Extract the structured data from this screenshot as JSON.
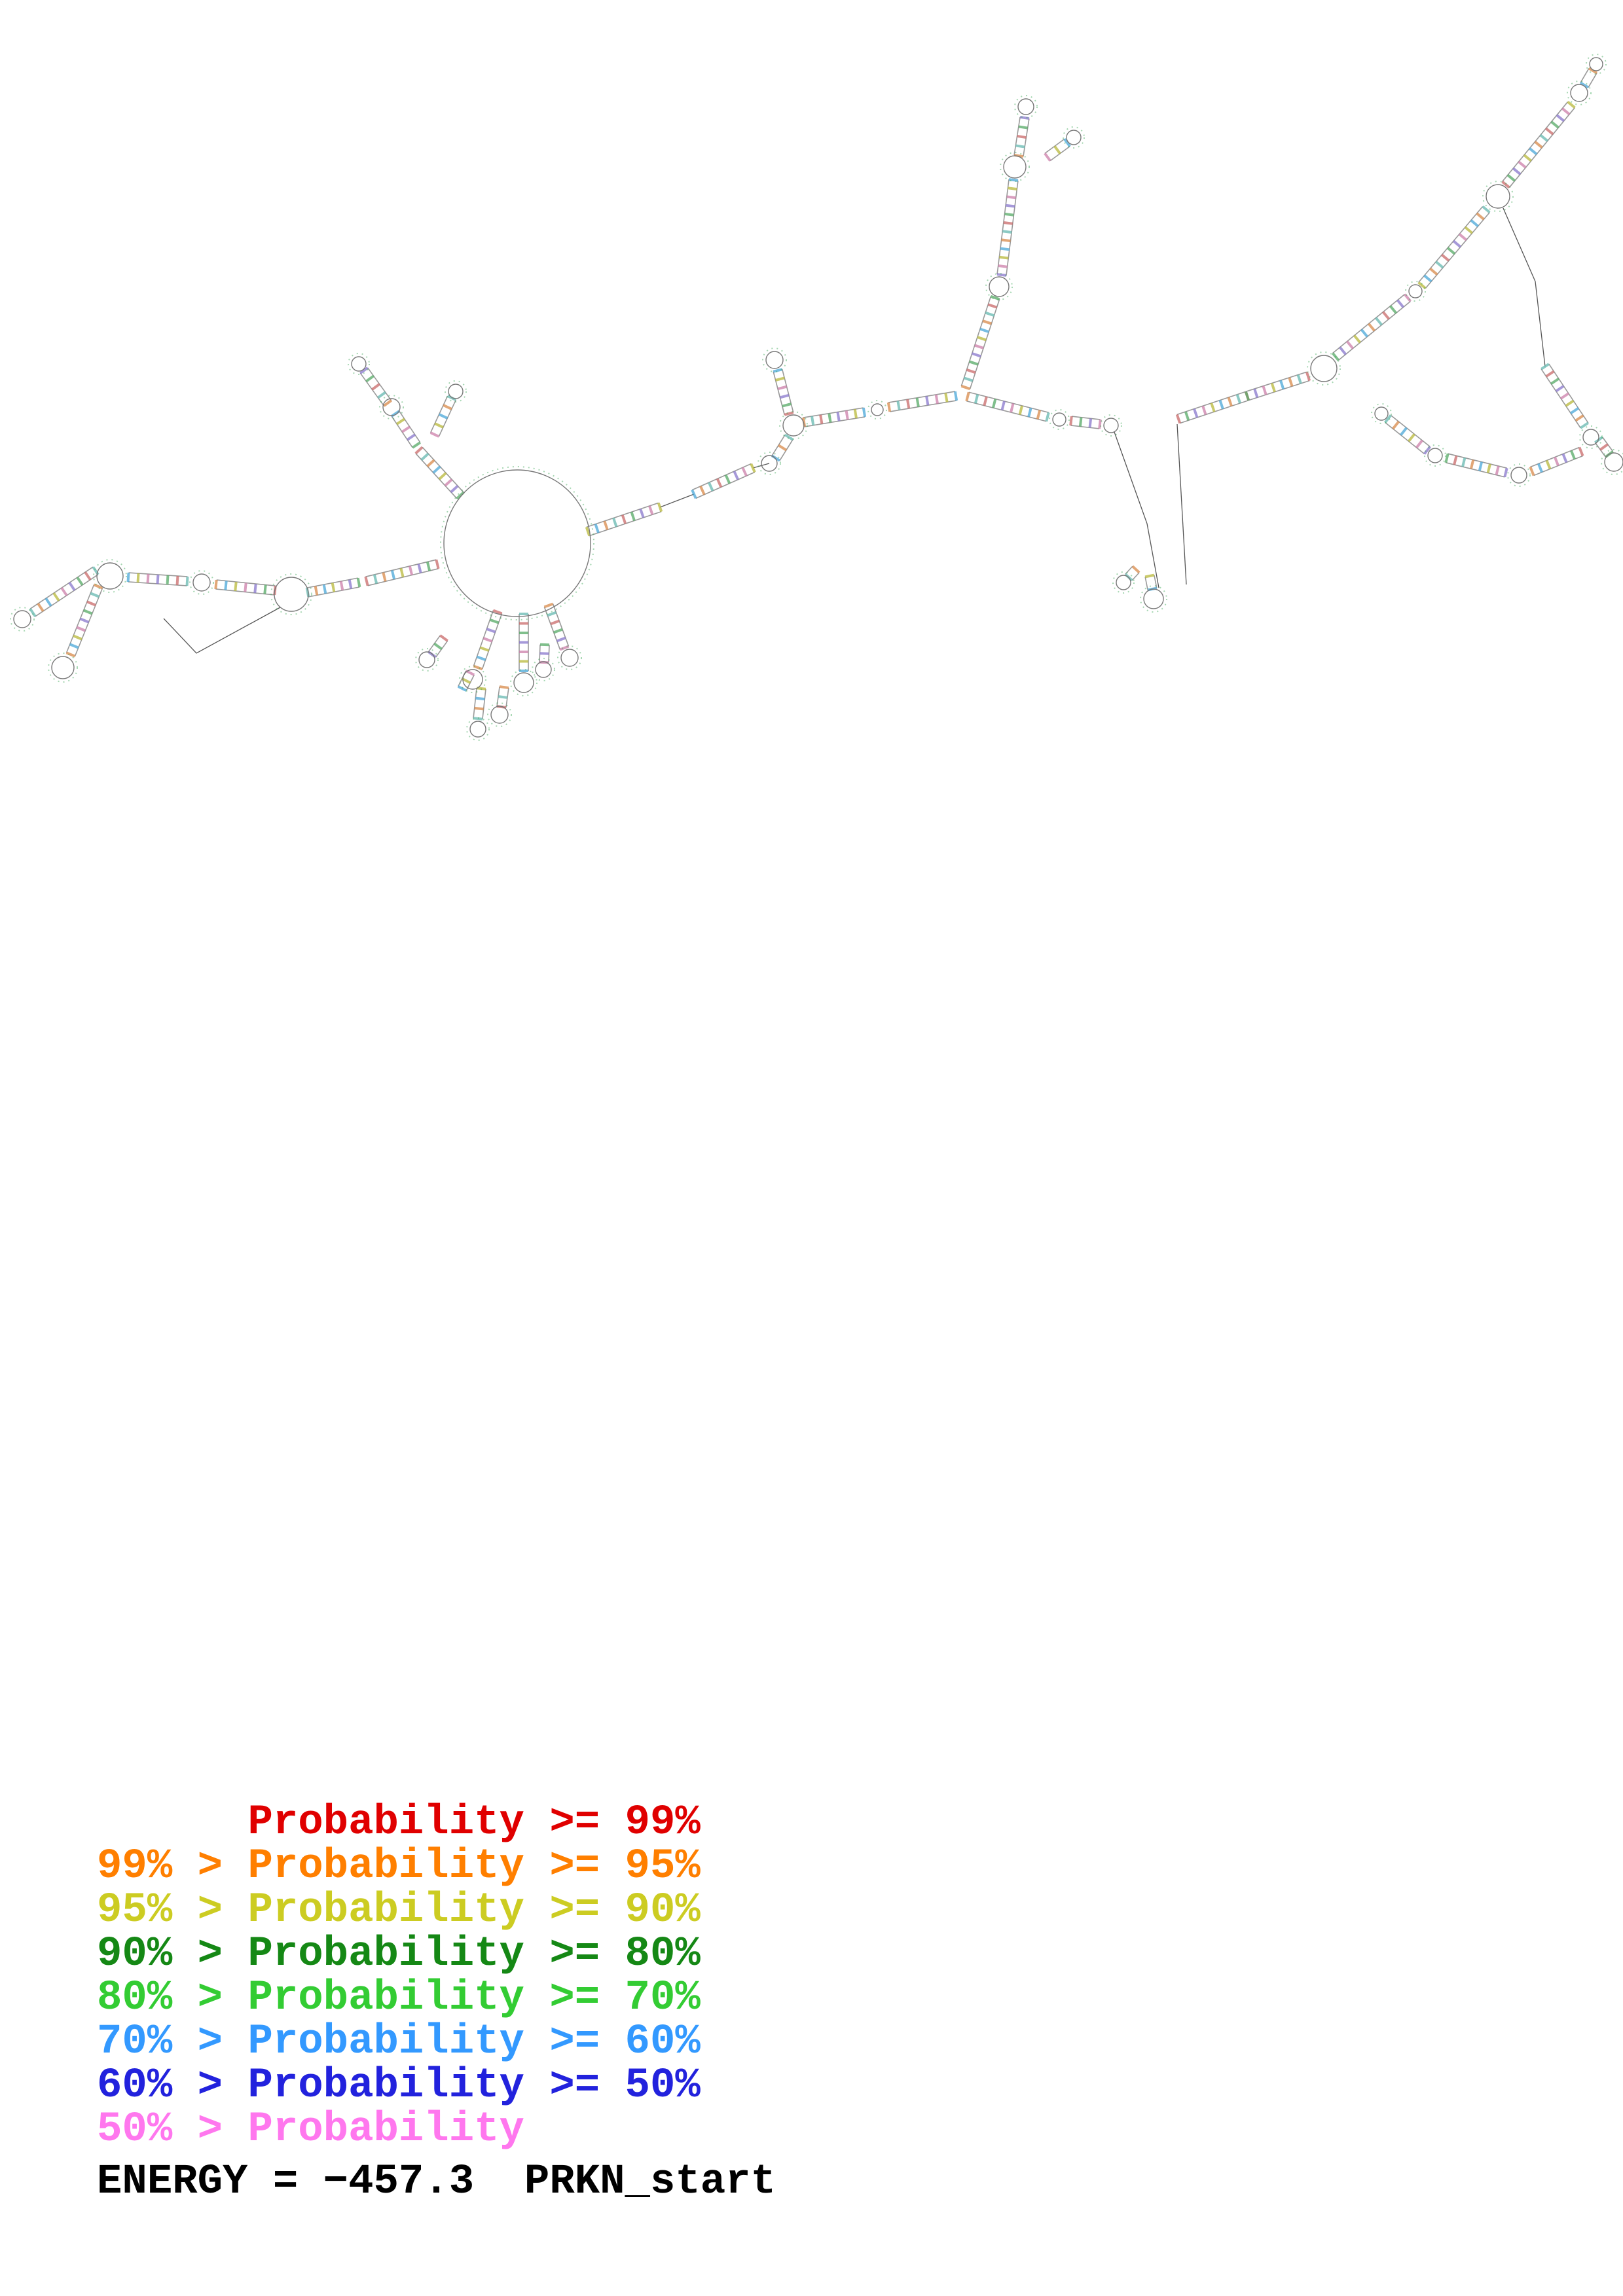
{
  "page": {
    "background": "#ffffff"
  },
  "legend": {
    "items": [
      {
        "text": "      Probability >= 99%",
        "color": "#e00000"
      },
      {
        "text": "99% > Probability >= 95%",
        "color": "#ff7f00"
      },
      {
        "text": "95% > Probability >= 90%",
        "color": "#cccc22"
      },
      {
        "text": "90% > Probability >= 80%",
        "color": "#158815"
      },
      {
        "text": "80% > Probability >= 70%",
        "color": "#33cc33"
      },
      {
        "text": "70% > Probability >= 60%",
        "color": "#3399ff"
      },
      {
        "text": "60% > Probability >= 50%",
        "color": "#2222dd"
      },
      {
        "text": "50% > Probability",
        "color": "#ff77ee"
      }
    ]
  },
  "footer": {
    "energy_label": "ENERGY = −457.3  PRKN_start"
  },
  "structure": {
    "palette": [
      "#55aa66",
      "#8877cc",
      "#cc7faa",
      "#b8b83a",
      "#4aa7d8",
      "#d88a4a",
      "#66b8b0",
      "#c96a6a"
    ],
    "loops": [
      [
        790,
        830,
        112
      ],
      [
        598,
        622,
        13
      ],
      [
        548,
        556,
        11
      ],
      [
        696,
        598,
        11
      ],
      [
        445,
        908,
        26
      ],
      [
        308,
        890,
        13
      ],
      [
        168,
        880,
        20
      ],
      [
        96,
        1020,
        17
      ],
      [
        34,
        946,
        13
      ],
      [
        722,
        1038,
        15
      ],
      [
        800,
        1043,
        15
      ],
      [
        870,
        1005,
        13
      ],
      [
        730,
        1114,
        12
      ],
      [
        652,
        1008,
        12
      ],
      [
        763,
        1092,
        13
      ],
      [
        830,
        1023,
        12
      ],
      [
        1175,
        708,
        12
      ],
      [
        1212,
        650,
        16
      ],
      [
        1183,
        550,
        13
      ],
      [
        1340,
        626,
        9
      ],
      [
        1526,
        438,
        15
      ],
      [
        1550,
        255,
        17
      ],
      [
        1567,
        163,
        12
      ],
      [
        1640,
        210,
        11
      ],
      [
        1618,
        641,
        10
      ],
      [
        1697,
        650,
        11
      ],
      [
        1762,
        915,
        15
      ],
      [
        1716,
        890,
        11
      ],
      [
        2022,
        563,
        20
      ],
      [
        2162,
        445,
        10
      ],
      [
        2288,
        300,
        18
      ],
      [
        2412,
        142,
        13
      ],
      [
        2438,
        98,
        10
      ],
      [
        2430,
        668,
        12
      ],
      [
        2320,
        726,
        12
      ],
      [
        2465,
        706,
        14
      ],
      [
        2192,
        696,
        11
      ],
      [
        2110,
        632,
        10
      ]
    ],
    "stems": [
      [
        703,
        757,
        640,
        688
      ],
      [
        636,
        680,
        604,
        632
      ],
      [
        592,
        616,
        556,
        566
      ],
      [
        664,
        664,
        690,
        608
      ],
      [
        668,
        862,
        560,
        888
      ],
      [
        548,
        890,
        470,
        905
      ],
      [
        420,
        902,
        330,
        893
      ],
      [
        286,
        888,
        196,
        882
      ],
      [
        150,
        896,
        108,
        1000
      ],
      [
        146,
        872,
        50,
        936
      ],
      [
        760,
        935,
        730,
        1020
      ],
      [
        800,
        938,
        800,
        1025
      ],
      [
        838,
        925,
        862,
        990
      ],
      [
        735,
        1052,
        730,
        1098
      ],
      [
        678,
        975,
        660,
        1000
      ],
      [
        718,
        1028,
        706,
        1052
      ],
      [
        770,
        1050,
        766,
        1080
      ],
      [
        832,
        985,
        831,
        1012
      ],
      [
        898,
        812,
        1008,
        775
      ],
      [
        1060,
        755,
        1150,
        715
      ],
      [
        1185,
        700,
        1205,
        668
      ],
      [
        1205,
        632,
        1188,
        566
      ],
      [
        1228,
        645,
        1320,
        630
      ],
      [
        1358,
        622,
        1460,
        605
      ],
      [
        1475,
        592,
        1520,
        455
      ],
      [
        1530,
        420,
        1548,
        275
      ],
      [
        1556,
        238,
        1565,
        180
      ],
      [
        1600,
        240,
        1630,
        218
      ],
      [
        1478,
        606,
        1600,
        637
      ],
      [
        1636,
        643,
        1680,
        648
      ],
      [
        1756,
        880,
        1760,
        900
      ],
      [
        1735,
        870,
        1724,
        882
      ],
      [
        1800,
        640,
        1905,
        605
      ],
      [
        1905,
        605,
        1998,
        575
      ],
      [
        2040,
        545,
        2150,
        455
      ],
      [
        2172,
        436,
        2270,
        320
      ],
      [
        2300,
        282,
        2400,
        160
      ],
      [
        2420,
        130,
        2433,
        108
      ],
      [
        2360,
        560,
        2420,
        650
      ],
      [
        2415,
        690,
        2340,
        720
      ],
      [
        2442,
        672,
        2458,
        694
      ],
      [
        2300,
        722,
        2210,
        700
      ],
      [
        2180,
        688,
        2120,
        640
      ]
    ],
    "links": [
      [
        [
          1008,
          775
        ],
        [
          1060,
          755
        ]
      ],
      [
        [
          428,
          928
        ],
        [
          300,
          998
        ],
        [
          250,
          945
        ]
      ],
      [
        [
          1702,
          660
        ],
        [
          1752,
          800
        ],
        [
          1770,
          898
        ]
      ],
      [
        [
          1798,
          648
        ],
        [
          1812,
          893
        ]
      ],
      [
        [
          2296,
          318
        ],
        [
          2345,
          430
        ],
        [
          2360,
          560
        ]
      ],
      [
        [
          1150,
          715
        ],
        [
          1175,
          708
        ]
      ]
    ]
  }
}
